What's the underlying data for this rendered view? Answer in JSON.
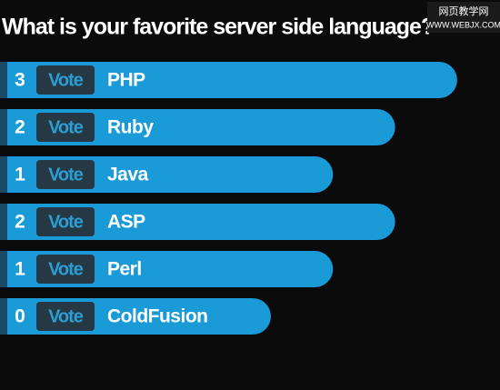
{
  "chart_data": {
    "type": "bar",
    "title": "What is your favorite server side language?",
    "categories": [
      "PHP",
      "Ruby",
      "Java",
      "ASP",
      "Perl",
      "ColdFusion"
    ],
    "values": [
      3,
      2,
      1,
      2,
      1,
      0
    ],
    "button_label": "Vote",
    "color": "#1a9ad6",
    "watermark": [
      "网页教学网",
      "WWW.WEBJX.COM"
    ]
  }
}
